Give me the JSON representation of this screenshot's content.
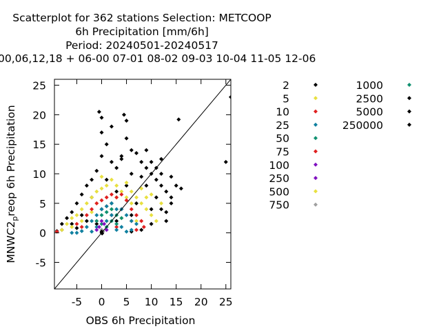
{
  "chart_data": {
    "type": "scatter",
    "title_lines": [
      "Scatterplot for  362 stations Selection: METCOOP",
      "6h Precipitation [mm/6h]",
      "Period: 20240501-20240517",
      "00,06,12,18 + 06-00 07-01 08-02 09-03 10-04 11-05 12-06"
    ],
    "xlabel": "OBS 6h Precipitation",
    "ylabel_main": "MNWC2",
    "ylabel_sub": "p",
    "ylabel_rest": "reop 6h Precipitation",
    "xlim": [
      -9.5,
      26
    ],
    "ylim": [
      -9.5,
      26
    ],
    "x_ticks": [
      -5,
      0,
      5,
      10,
      15,
      20,
      25
    ],
    "y_ticks": [
      -5,
      0,
      5,
      10,
      15,
      20,
      25
    ],
    "diagonal": true,
    "grid": false,
    "legend_placement": "right",
    "legend": [
      {
        "label": "2",
        "color": "#000000"
      },
      {
        "label": "5",
        "color": "#e8e040"
      },
      {
        "label": "10",
        "color": "#e02020"
      },
      {
        "label": "25",
        "color": "#1080a0"
      },
      {
        "label": "50",
        "color": "#109070"
      },
      {
        "label": "75",
        "color": "#e02020"
      },
      {
        "label": "100",
        "color": "#8010c0"
      },
      {
        "label": "250",
        "color": "#8010c0"
      },
      {
        "label": "500",
        "color": "#e8e040"
      },
      {
        "label": "750",
        "color": "#a0a0a0"
      },
      {
        "label": "1000",
        "color": "#109070"
      },
      {
        "label": "2500",
        "color": "#000000"
      },
      {
        "label": "5000",
        "color": "#000000"
      },
      {
        "label": "250000",
        "color": "#000000"
      }
    ],
    "series": [
      {
        "label_ref": "2",
        "color": "#000000",
        "points": [
          [
            -9,
            0.3
          ],
          [
            -8,
            1.5
          ],
          [
            -7,
            2.5
          ],
          [
            -6,
            3.5
          ],
          [
            -5,
            5
          ],
          [
            -4,
            6.5
          ],
          [
            -3,
            8
          ],
          [
            -2,
            9
          ],
          [
            -1,
            10.5
          ],
          [
            0,
            13
          ],
          [
            0,
            17
          ],
          [
            -0.5,
            20.5
          ],
          [
            0,
            19.5
          ],
          [
            1,
            15
          ],
          [
            2,
            18
          ],
          [
            2,
            12
          ],
          [
            3,
            11
          ],
          [
            4,
            13
          ],
          [
            4.5,
            20
          ],
          [
            5,
            19
          ],
          [
            5,
            16
          ],
          [
            6,
            14
          ],
          [
            7,
            13.5
          ],
          [
            8,
            12
          ],
          [
            9,
            11
          ],
          [
            10,
            10
          ],
          [
            11,
            9
          ],
          [
            12,
            8
          ],
          [
            13,
            7
          ],
          [
            14,
            6
          ],
          [
            15.5,
            19.2
          ],
          [
            14,
            9.5
          ],
          [
            12,
            12.5
          ],
          [
            10,
            12
          ],
          [
            9,
            14
          ],
          [
            11,
            6
          ],
          [
            12,
            4
          ],
          [
            13,
            3.5
          ],
          [
            13,
            2
          ],
          [
            10,
            1.5
          ],
          [
            8,
            0.5
          ],
          [
            6,
            0.2
          ],
          [
            3,
            2
          ],
          [
            -3,
            2
          ],
          [
            -5,
            0.8
          ],
          [
            -1,
            1.5
          ],
          [
            25,
            12
          ],
          [
            26,
            23
          ],
          [
            15,
            8
          ],
          [
            14,
            5
          ],
          [
            16,
            7.5
          ],
          [
            7,
            5
          ],
          [
            9,
            8
          ],
          [
            3,
            7
          ],
          [
            -4,
            3
          ],
          [
            -6,
            1.5
          ],
          [
            -8,
            0.5
          ],
          [
            1,
            9
          ],
          [
            6,
            10
          ],
          [
            8,
            9.5
          ],
          [
            11,
            11
          ],
          [
            4,
            12.5
          ],
          [
            -2,
            6
          ],
          [
            0,
            4
          ],
          [
            2,
            5
          ],
          [
            6,
            3
          ],
          [
            5,
            8
          ],
          [
            10,
            4
          ],
          [
            12,
            10
          ]
        ]
      },
      {
        "label_ref": "5",
        "color": "#e8e040",
        "points": [
          [
            -8,
            0.5
          ],
          [
            -7,
            1.5
          ],
          [
            -6,
            2.5
          ],
          [
            -5,
            3
          ],
          [
            -4,
            4
          ],
          [
            -3,
            5
          ],
          [
            -2,
            6
          ],
          [
            -1,
            7
          ],
          [
            0,
            7.5
          ],
          [
            1,
            8
          ],
          [
            2,
            9
          ],
          [
            3,
            8
          ],
          [
            4,
            7
          ],
          [
            5,
            8.5
          ],
          [
            6,
            7
          ],
          [
            7,
            6
          ],
          [
            8,
            5
          ],
          [
            9,
            4
          ],
          [
            10,
            3
          ],
          [
            11,
            2
          ],
          [
            8,
            7.5
          ],
          [
            6,
            5
          ],
          [
            3,
            6
          ],
          [
            -1,
            5
          ],
          [
            -4,
            2
          ],
          [
            -6,
            1
          ],
          [
            7,
            2
          ],
          [
            9,
            6
          ],
          [
            2,
            4
          ],
          [
            4,
            2.5
          ],
          [
            0,
            9.5
          ],
          [
            -2,
            3.5
          ],
          [
            5,
            6
          ],
          [
            10,
            6.5
          ],
          [
            12,
            5
          ],
          [
            1,
            2
          ]
        ]
      },
      {
        "label_ref": "10",
        "color": "#e02020",
        "points": [
          [
            -9,
            0.2
          ],
          [
            -5,
            1.5
          ],
          [
            -3,
            3
          ],
          [
            -2,
            4
          ],
          [
            -1,
            5
          ],
          [
            0,
            5.5
          ],
          [
            1,
            6
          ],
          [
            2,
            6.5
          ],
          [
            3,
            6
          ],
          [
            4,
            6.5
          ],
          [
            5,
            5.5
          ],
          [
            6,
            4
          ],
          [
            7,
            3
          ],
          [
            8,
            2
          ],
          [
            8.5,
            1
          ],
          [
            -4,
            1
          ],
          [
            -1,
            2
          ],
          [
            2,
            3
          ],
          [
            6,
            2
          ],
          [
            4,
            4
          ],
          [
            1,
            4.5
          ],
          [
            3,
            1
          ],
          [
            7,
            0.5
          ]
        ]
      },
      {
        "label_ref": "25",
        "color": "#1080a0",
        "points": [
          [
            -6,
            0
          ],
          [
            -5,
            0
          ],
          [
            -4,
            0.3
          ],
          [
            -3,
            1
          ],
          [
            -2,
            2
          ],
          [
            -1,
            3
          ],
          [
            0,
            4
          ],
          [
            1,
            4.5
          ],
          [
            2,
            5
          ],
          [
            3,
            4
          ],
          [
            4,
            4
          ],
          [
            5,
            3
          ],
          [
            6,
            2
          ],
          [
            4,
            1
          ],
          [
            3,
            0.5
          ],
          [
            5,
            0.2
          ],
          [
            1,
            2
          ],
          [
            2,
            3
          ],
          [
            -1,
            1
          ],
          [
            0,
            0.5
          ],
          [
            -2,
            0.2
          ],
          [
            6,
            0.5
          ],
          [
            7,
            1.5
          ]
        ]
      },
      {
        "label_ref": "50",
        "color": "#109070",
        "points": [
          [
            -1,
            2
          ],
          [
            0,
            3
          ],
          [
            1,
            3.5
          ],
          [
            2,
            4
          ],
          [
            3,
            3
          ],
          [
            4,
            2.5
          ],
          [
            3,
            1.5
          ],
          [
            1,
            1
          ],
          [
            2,
            2
          ],
          [
            0,
            1.5
          ]
        ]
      },
      {
        "label_ref": "100",
        "color": "#8010c0",
        "points": [
          [
            -0.5,
            1
          ],
          [
            0,
            2
          ],
          [
            0.5,
            1.5
          ],
          [
            1,
            0.5
          ],
          [
            -1,
            0.5
          ]
        ]
      },
      {
        "label_ref": "750",
        "color": "#a0a0a0",
        "points": [
          [
            0,
            0.5
          ],
          [
            0.3,
            0.2
          ]
        ]
      },
      {
        "label_ref": "250000",
        "color": "#000000",
        "points": [
          [
            0,
            0
          ],
          [
            0,
            0.2
          ],
          [
            0.1,
            -0.1
          ]
        ]
      }
    ]
  }
}
